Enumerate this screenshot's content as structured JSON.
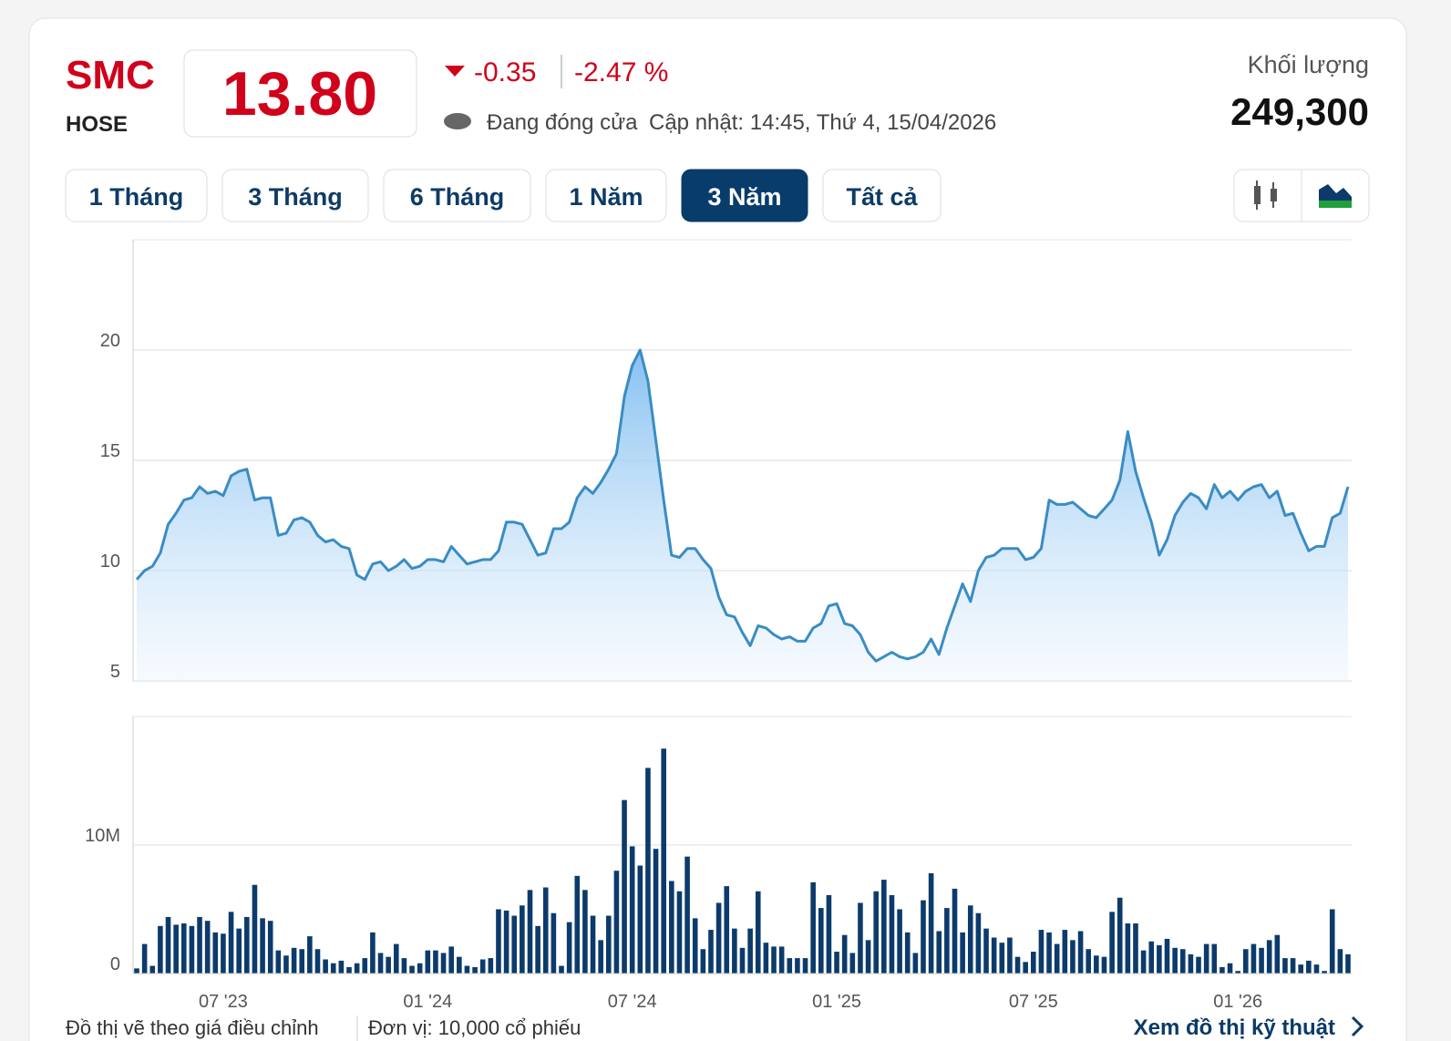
{
  "header": {
    "ticker": "SMC",
    "exchange": "HOSE",
    "price": "13.80",
    "change": "-0.35",
    "change_percent": "-2.47 %",
    "status": "Đang đóng cửa",
    "updated": "Cập nhật: 14:45, Thứ 4, 15/04/2026",
    "volume_label": "Khối lượng",
    "volume": "249,300"
  },
  "ranges": [
    "1 Tháng",
    "3 Tháng",
    "6 Tháng",
    "1 Năm",
    "3 Năm",
    "Tất cả"
  ],
  "active_range": 4,
  "footer": {
    "note": "Đồ thị vẽ theo giá điều chỉnh",
    "unit": "Đơn vị: 10,000 cổ phiếu",
    "link": "Xem đồ thị kỹ thuật"
  },
  "chart_data": [
    {
      "type": "area",
      "color": "#3a8cc4",
      "ylim": [
        5,
        25
      ],
      "yticks": [
        5,
        10,
        15,
        20
      ],
      "grid": true,
      "values": [
        9.6,
        10.0,
        10.2,
        10.8,
        12.1,
        12.6,
        13.2,
        13.3,
        13.8,
        13.5,
        13.6,
        13.4,
        14.3,
        14.5,
        14.6,
        13.2,
        13.3,
        13.3,
        11.6,
        11.7,
        12.3,
        12.4,
        12.2,
        11.6,
        11.3,
        11.4,
        11.1,
        11.0,
        9.8,
        9.6,
        10.3,
        10.4,
        10.0,
        10.2,
        10.5,
        10.1,
        10.2,
        10.5,
        10.5,
        10.4,
        11.1,
        10.7,
        10.3,
        10.4,
        10.5,
        10.5,
        10.9,
        12.2,
        12.2,
        12.1,
        11.4,
        10.7,
        10.8,
        11.9,
        11.9,
        12.2,
        13.3,
        13.8,
        13.5,
        14.0,
        14.6,
        15.3,
        17.9,
        19.3,
        20.0,
        18.6,
        15.9,
        13.2,
        10.7,
        10.6,
        11.0,
        11.0,
        10.5,
        10.1,
        8.8,
        8.0,
        7.9,
        7.2,
        6.6,
        7.5,
        7.4,
        7.1,
        6.9,
        7.0,
        6.8,
        6.8,
        7.4,
        7.6,
        8.4,
        8.5,
        7.6,
        7.5,
        7.1,
        6.3,
        5.9,
        6.1,
        6.3,
        6.1,
        6.0,
        6.1,
        6.3,
        6.9,
        6.2,
        7.4,
        8.4,
        9.4,
        8.6,
        10.0,
        10.6,
        10.7,
        11.0,
        11.0,
        11.0,
        10.5,
        10.6,
        11.0,
        13.2,
        13.0,
        13.0,
        13.1,
        12.8,
        12.5,
        12.4,
        12.8,
        13.2,
        14.1,
        16.3,
        14.5,
        13.3,
        12.2,
        10.7,
        11.4,
        12.5,
        13.1,
        13.5,
        13.3,
        12.8,
        13.9,
        13.3,
        13.6,
        13.2,
        13.6,
        13.8,
        13.9,
        13.3,
        13.6,
        12.5,
        12.6,
        11.7,
        10.9,
        11.1,
        11.1,
        12.4,
        12.6,
        13.8
      ]
    },
    {
      "type": "bar",
      "color": "#0c3b6b",
      "ylim": [
        0,
        20000000
      ],
      "yticks": [
        0,
        {
          "value": 10000000,
          "label": "10M"
        }
      ],
      "grid": true,
      "categories": [
        null,
        null,
        null,
        null,
        null,
        null,
        null,
        null,
        null,
        null,
        null,
        "07 '23",
        null,
        null,
        null,
        null,
        null,
        null,
        null,
        null,
        null,
        null,
        null,
        null,
        null,
        null,
        null,
        null,
        null,
        null,
        null,
        null,
        null,
        null,
        null,
        null,
        null,
        "01 '24",
        null,
        null,
        null,
        null,
        null,
        null,
        null,
        null,
        null,
        null,
        null,
        null,
        null,
        null,
        null,
        null,
        null,
        null,
        null,
        null,
        null,
        null,
        null,
        null,
        null,
        "07 '24",
        null,
        null,
        null,
        null,
        null,
        null,
        null,
        null,
        null,
        null,
        null,
        null,
        null,
        null,
        null,
        null,
        null,
        null,
        null,
        null,
        null,
        null,
        null,
        null,
        null,
        "01 '25",
        null,
        null,
        null,
        null,
        null,
        null,
        null,
        null,
        null,
        null,
        null,
        null,
        null,
        null,
        null,
        null,
        null,
        null,
        null,
        null,
        null,
        null,
        null,
        null,
        "07 '25",
        null,
        null,
        null,
        null,
        null,
        null,
        null,
        null,
        null,
        null,
        null,
        null,
        null,
        null,
        null,
        null,
        null,
        null,
        null,
        null,
        null,
        null,
        null,
        null,
        null,
        "01 '26",
        null,
        null,
        null,
        null,
        null,
        null,
        null,
        null,
        null,
        null,
        null,
        null,
        null,
        null
      ],
      "values": [
        400000,
        2300000,
        600000,
        3700000,
        4400000,
        3800000,
        3900000,
        3700000,
        4400000,
        4100000,
        3200000,
        3100000,
        4800000,
        3500000,
        4400000,
        6900000,
        4300000,
        4100000,
        1800000,
        1400000,
        2000000,
        1900000,
        2900000,
        1900000,
        1100000,
        800000,
        1000000,
        500000,
        800000,
        1200000,
        3200000,
        1600000,
        1300000,
        2300000,
        1200000,
        600000,
        800000,
        1800000,
        1800000,
        1600000,
        2100000,
        1300000,
        600000,
        500000,
        1100000,
        1200000,
        5000000,
        4900000,
        4500000,
        5300000,
        6500000,
        3700000,
        6700000,
        4700000,
        600000,
        4000000,
        7600000,
        6500000,
        4500000,
        2600000,
        4500000,
        8000000,
        13500000,
        9900000,
        8400000,
        16000000,
        9700000,
        17500000,
        7200000,
        6400000,
        9100000,
        4300000,
        1900000,
        3400000,
        5500000,
        6800000,
        3500000,
        2000000,
        3500000,
        6400000,
        2400000,
        2100000,
        2100000,
        1200000,
        1200000,
        1200000,
        7100000,
        5100000,
        6100000,
        1700000,
        3000000,
        1600000,
        5500000,
        2600000,
        6400000,
        7300000,
        6100000,
        5000000,
        3200000,
        1600000,
        5700000,
        7800000,
        3300000,
        5100000,
        6600000,
        3200000,
        5300000,
        4700000,
        3500000,
        2800000,
        2400000,
        2800000,
        1300000,
        900000,
        1700000,
        3400000,
        3200000,
        2300000,
        3400000,
        2600000,
        3300000,
        1900000,
        1400000,
        1300000,
        4800000,
        5900000,
        3900000,
        3900000,
        1800000,
        2500000,
        2200000,
        2700000,
        2000000,
        1900000,
        1500000,
        1300000,
        2300000,
        2300000,
        500000,
        800000,
        200000,
        1900000,
        2300000,
        2000000,
        2600000,
        3000000,
        1200000,
        1200000,
        700000,
        1000000,
        700000,
        200000,
        5000000,
        1900000,
        1500000
      ]
    }
  ]
}
